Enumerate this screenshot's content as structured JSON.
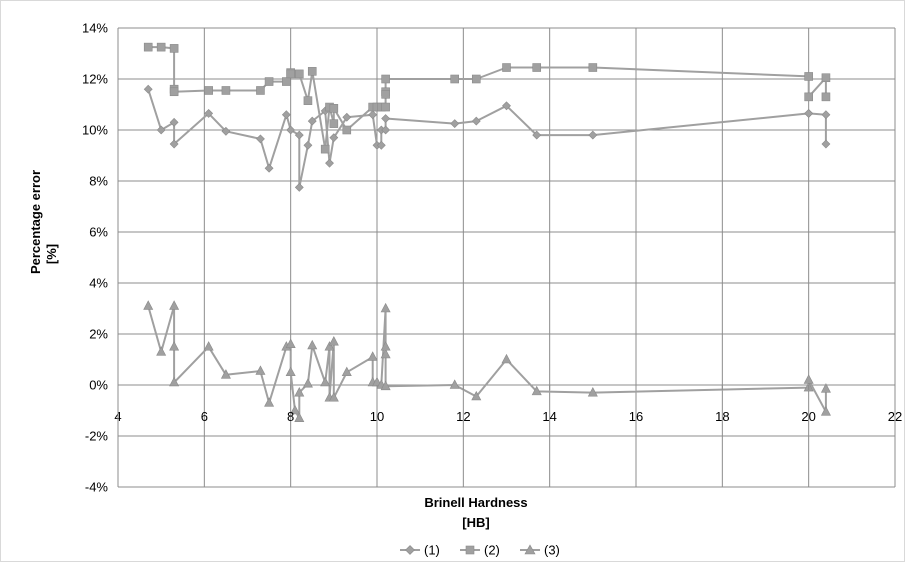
{
  "chart_data": {
    "type": "line",
    "xlabel": [
      "Brinell Hardness",
      "[HB]"
    ],
    "ylabel": [
      "Percentage error",
      "[%]"
    ],
    "xlim": [
      4,
      22
    ],
    "ylim": [
      -4,
      14
    ],
    "x_ticks": [
      4,
      6,
      8,
      10,
      12,
      14,
      16,
      18,
      20,
      22
    ],
    "x_tick_labels": [
      "4",
      "6",
      "8",
      "10",
      "12",
      "14",
      "16",
      "18",
      "20",
      "22"
    ],
    "y_ticks": [
      -4,
      -2,
      0,
      2,
      4,
      6,
      8,
      10,
      12,
      14
    ],
    "y_tick_labels": [
      "-4%",
      "-2%",
      "0%",
      "2%",
      "4%",
      "6%",
      "8%",
      "10%",
      "12%",
      "14%"
    ],
    "grid": true,
    "legend_position": "bottom-center",
    "series": [
      {
        "name": "(1)",
        "marker": "diamond",
        "color": "#a0a0a0",
        "points": [
          [
            4.7,
            11.6
          ],
          [
            5.0,
            10.0
          ],
          [
            5.3,
            10.3
          ],
          [
            5.3,
            9.45
          ],
          [
            6.1,
            10.65
          ],
          [
            6.5,
            9.95
          ],
          [
            7.3,
            9.65
          ],
          [
            7.5,
            8.5
          ],
          [
            7.9,
            10.6
          ],
          [
            8.0,
            10.0
          ],
          [
            8.2,
            9.8
          ],
          [
            8.2,
            7.75
          ],
          [
            8.4,
            9.4
          ],
          [
            8.5,
            10.35
          ],
          [
            8.8,
            10.75
          ],
          [
            8.9,
            8.7
          ],
          [
            9.0,
            9.7
          ],
          [
            9.3,
            10.5
          ],
          [
            9.9,
            10.6
          ],
          [
            10.0,
            9.4
          ],
          [
            10.1,
            9.4
          ],
          [
            10.1,
            10.0
          ],
          [
            10.2,
            10.0
          ],
          [
            10.2,
            10.45
          ],
          [
            11.8,
            10.25
          ],
          [
            12.3,
            10.35
          ],
          [
            13.0,
            10.95
          ],
          [
            13.7,
            9.8
          ],
          [
            15.0,
            9.8
          ],
          [
            20.0,
            10.65
          ],
          [
            20.0,
            10.65
          ],
          [
            20.4,
            10.6
          ],
          [
            20.4,
            9.45
          ]
        ]
      },
      {
        "name": "(2)",
        "marker": "square",
        "color": "#a0a0a0",
        "points": [
          [
            4.7,
            13.25
          ],
          [
            5.0,
            13.25
          ],
          [
            5.3,
            13.2
          ],
          [
            5.3,
            11.6
          ],
          [
            5.3,
            11.5
          ],
          [
            6.1,
            11.55
          ],
          [
            6.5,
            11.55
          ],
          [
            7.3,
            11.55
          ],
          [
            7.5,
            11.9
          ],
          [
            7.9,
            11.9
          ],
          [
            8.0,
            12.25
          ],
          [
            8.0,
            12.2
          ],
          [
            8.2,
            12.2
          ],
          [
            8.4,
            11.15
          ],
          [
            8.5,
            12.3
          ],
          [
            8.8,
            9.25
          ],
          [
            8.9,
            10.9
          ],
          [
            9.0,
            10.25
          ],
          [
            9.0,
            10.85
          ],
          [
            9.3,
            10.0
          ],
          [
            9.9,
            10.9
          ],
          [
            10.0,
            10.9
          ],
          [
            10.1,
            10.9
          ],
          [
            10.2,
            10.9
          ],
          [
            10.2,
            11.5
          ],
          [
            10.2,
            11.4
          ],
          [
            10.2,
            12.0
          ],
          [
            11.8,
            12.0
          ],
          [
            12.3,
            12.0
          ],
          [
            13.0,
            12.45
          ],
          [
            13.7,
            12.45
          ],
          [
            15.0,
            12.45
          ],
          [
            20.0,
            12.1
          ],
          [
            20.0,
            11.3
          ],
          [
            20.4,
            12.05
          ],
          [
            20.4,
            11.3
          ]
        ]
      },
      {
        "name": "(3)",
        "marker": "triangle",
        "color": "#a0a0a0",
        "points": [
          [
            4.7,
            3.1
          ],
          [
            5.0,
            1.3
          ],
          [
            5.3,
            3.1
          ],
          [
            5.3,
            1.5
          ],
          [
            5.3,
            0.1
          ],
          [
            6.1,
            1.5
          ],
          [
            6.5,
            0.4
          ],
          [
            7.3,
            0.55
          ],
          [
            7.5,
            -0.7
          ],
          [
            7.9,
            1.5
          ],
          [
            8.0,
            1.6
          ],
          [
            8.0,
            0.5
          ],
          [
            8.1,
            -1.0
          ],
          [
            8.2,
            -1.3
          ],
          [
            8.2,
            -0.3
          ],
          [
            8.4,
            0.05
          ],
          [
            8.5,
            1.55
          ],
          [
            8.8,
            0.1
          ],
          [
            8.9,
            1.5
          ],
          [
            8.9,
            -0.5
          ],
          [
            9.0,
            1.7
          ],
          [
            9.0,
            -0.5
          ],
          [
            9.3,
            0.5
          ],
          [
            9.9,
            1.1
          ],
          [
            9.9,
            0.1
          ],
          [
            10.0,
            0.1
          ],
          [
            10.1,
            0.0
          ],
          [
            10.2,
            3.0
          ],
          [
            10.2,
            1.2
          ],
          [
            10.2,
            1.5
          ],
          [
            10.2,
            -0.05
          ],
          [
            11.8,
            0.0
          ],
          [
            12.3,
            -0.45
          ],
          [
            13.0,
            1.0
          ],
          [
            13.7,
            -0.25
          ],
          [
            15.0,
            -0.3
          ],
          [
            20.0,
            -0.1
          ],
          [
            20.0,
            0.2
          ],
          [
            20.4,
            -1.05
          ],
          [
            20.4,
            -0.15
          ]
        ]
      }
    ]
  }
}
